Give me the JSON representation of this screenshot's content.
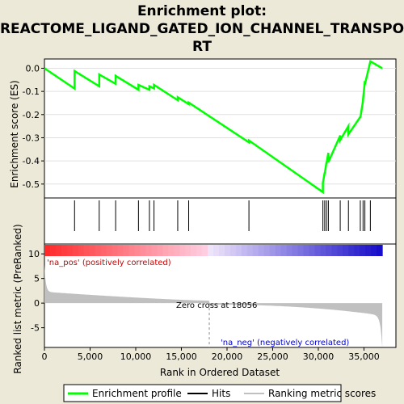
{
  "chart_data": {
    "type": "line",
    "title_lines": [
      "Enrichment plot:",
      "REACTOME_LIGAND_GATED_ION_CHANNEL_TRANSPO",
      "RT"
    ],
    "es_panel": {
      "ylabel": "Enrichment score (ES)",
      "ylim": [
        -0.56,
        0.04
      ],
      "yticks": [
        "0.0",
        "-0.1",
        "-0.2",
        "-0.3",
        "-0.4",
        "-0.5"
      ],
      "ytick_values": [
        0.0,
        -0.1,
        -0.2,
        -0.3,
        -0.4,
        -0.5
      ],
      "series": [
        {
          "name": "Enrichment profile",
          "color": "#00ff00",
          "x": [
            0,
            3300,
            3300,
            6000,
            6000,
            7800,
            7800,
            10300,
            10300,
            11500,
            11500,
            12000,
            12000,
            14600,
            14600,
            15800,
            15800,
            22400,
            22400,
            30500,
            30500,
            30700,
            30700,
            30900,
            30900,
            31100,
            31100,
            32400,
            32400,
            33300,
            33300,
            34600,
            34600,
            34900,
            34900,
            35100,
            35100,
            35700,
            35700,
            37000
          ],
          "y": [
            0.0,
            -0.088,
            -0.012,
            -0.078,
            -0.027,
            -0.067,
            -0.033,
            -0.093,
            -0.072,
            -0.093,
            -0.078,
            -0.087,
            -0.072,
            -0.138,
            -0.125,
            -0.155,
            -0.148,
            -0.32,
            -0.312,
            -0.535,
            -0.495,
            -0.45,
            -0.455,
            -0.405,
            -0.41,
            -0.365,
            -0.405,
            -0.29,
            -0.31,
            -0.25,
            -0.285,
            -0.21,
            -0.215,
            -0.14,
            -0.135,
            -0.055,
            -0.07,
            0.03,
            0.03,
            0.0
          ]
        }
      ]
    },
    "hits": [
      3300,
      6000,
      7800,
      10300,
      11500,
      12000,
      14600,
      15800,
      22400,
      30500,
      30700,
      30900,
      31100,
      32400,
      33300,
      34600,
      34900,
      35100,
      35700
    ],
    "ranking_panel": {
      "ylabel": "Ranked list metric (PreRanked)",
      "ylim": [
        -9,
        12
      ],
      "yticks": [
        "10",
        "5",
        "0",
        "-5"
      ],
      "ytick_values": [
        10,
        5,
        0,
        -5
      ],
      "series_name": "Ranking metric scores",
      "zero_cross_label": "Zero cross at 18056",
      "zero_cross": 18056,
      "pos_label": "'na_pos' (positively correlated)",
      "neg_label": "'na_neg' (negatively correlated)"
    },
    "xlabel": "Rank in Ordered Dataset",
    "xlim": [
      0,
      38500
    ],
    "xticks": [
      "0",
      "5,000",
      "10,000",
      "15,000",
      "20,000",
      "25,000",
      "30,000",
      "35,000"
    ],
    "xtick_values": [
      0,
      5000,
      10000,
      15000,
      20000,
      25000,
      30000,
      35000
    ],
    "n_genes": 37000,
    "legend": {
      "placement": "bottom",
      "items": [
        {
          "label": "Enrichment profile",
          "color": "#00ff00"
        },
        {
          "label": "Hits",
          "color": "#000000"
        },
        {
          "label": "Ranking metric scores",
          "color": "#c0c0c0"
        }
      ]
    }
  }
}
